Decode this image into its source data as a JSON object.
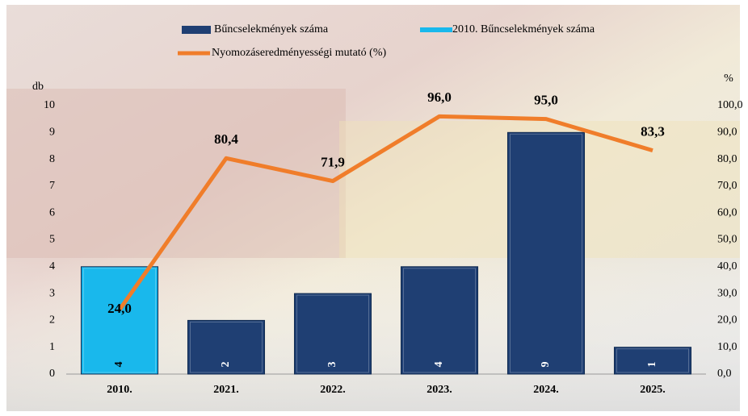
{
  "chart_data": {
    "type": "bar-line",
    "categories": [
      "2010.",
      "2021.",
      "2022.",
      "2023.",
      "2024.",
      "2025."
    ],
    "series": [
      {
        "name": "Bűncselekmények száma",
        "color": "#1f3f73",
        "values": [
          null,
          2,
          3,
          4,
          9,
          1
        ]
      },
      {
        "name": "2010. Bűncselekmények száma",
        "color": "#19b8ec",
        "values": [
          4,
          null,
          null,
          null,
          null,
          null
        ]
      },
      {
        "name": "Nyomozáseredményességi mutató (%)",
        "type": "line",
        "axis": "y2",
        "color": "#f07d2a",
        "values": [
          24.0,
          80.4,
          71.9,
          96.0,
          95.0,
          83.3
        ],
        "value_labels": [
          "24,0",
          "80,4",
          "71,9",
          "96,0",
          "95,0",
          "83,3"
        ]
      }
    ],
    "ylabel": "db",
    "y2label": "%",
    "ylim": [
      0,
      10
    ],
    "yticks": [
      0,
      1,
      2,
      3,
      4,
      5,
      6,
      7,
      8,
      9,
      10
    ],
    "y2lim": [
      0,
      100
    ],
    "y2ticks": [
      {
        "value": 0,
        "label": "0,0"
      },
      {
        "value": 10,
        "label": "10,0"
      },
      {
        "value": 20,
        "label": "20,0"
      },
      {
        "value": 30,
        "label": "30,0"
      },
      {
        "value": 40,
        "label": "40,0"
      },
      {
        "value": 50,
        "label": "50,0"
      },
      {
        "value": 60,
        "label": "60,0"
      },
      {
        "value": 70,
        "label": "70,0"
      },
      {
        "value": 80,
        "label": "80,0"
      },
      {
        "value": 90,
        "label": "90,0"
      },
      {
        "value": 100,
        "label": "100,0"
      }
    ]
  }
}
